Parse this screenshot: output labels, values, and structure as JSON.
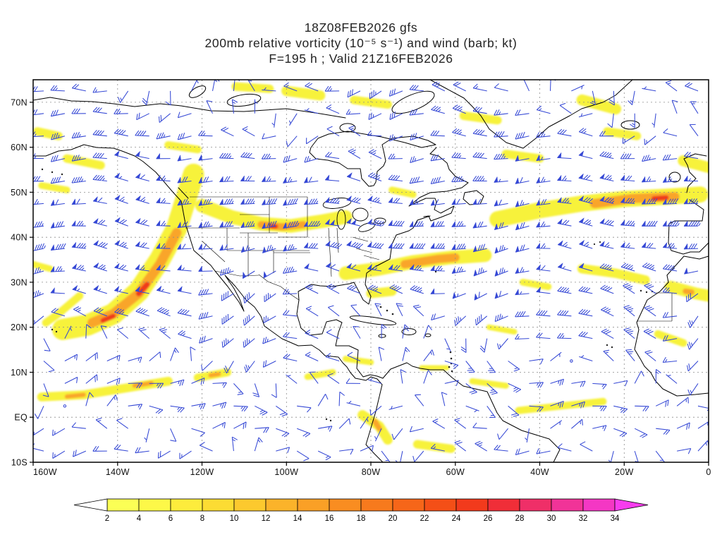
{
  "title": {
    "line1": "18Z08FEB2026 gfs",
    "line2": "200mb relative vorticity (10⁻⁵ s⁻¹) and wind (barb; kt)",
    "line3": "F=195 h ; Valid 21Z16FEB2026"
  },
  "chart_data": {
    "type": "heatmap",
    "model": "gfs",
    "init_time": "18Z08FEB2026",
    "valid_time": "21Z16FEB2026",
    "forecast_hour": 195,
    "field": "200mb relative vorticity (10^-5 s^-1) and wind (barb; kt)",
    "projection": "latlon",
    "lon_min": -160,
    "lon_max": 0,
    "lat_min": -10,
    "lat_max": 75,
    "grid": {
      "style": "dashed",
      "lon_step_deg": 20,
      "lat_step_deg": 10
    },
    "x_ticks": [
      {
        "lon": -160,
        "label": "160W"
      },
      {
        "lon": -140,
        "label": "140W"
      },
      {
        "lon": -120,
        "label": "120W"
      },
      {
        "lon": -100,
        "label": "100W"
      },
      {
        "lon": -80,
        "label": "80W"
      },
      {
        "lon": -60,
        "label": "60W"
      },
      {
        "lon": -40,
        "label": "40W"
      },
      {
        "lon": -20,
        "label": "20W"
      },
      {
        "lon": 0,
        "label": "0"
      }
    ],
    "y_ticks": [
      {
        "lat": 70,
        "label": "70N"
      },
      {
        "lat": 60,
        "label": "60N"
      },
      {
        "lat": 50,
        "label": "50N"
      },
      {
        "lat": 40,
        "label": "40N"
      },
      {
        "lat": 30,
        "label": "30N"
      },
      {
        "lat": 20,
        "label": "20N"
      },
      {
        "lat": 10,
        "label": "10N"
      },
      {
        "lat": 0,
        "label": "EQ"
      },
      {
        "lat": -10,
        "label": "10S"
      }
    ],
    "wind": {
      "color": "#3548d5",
      "grid_deg": 5,
      "jet_center_lat": 42,
      "jet_max_kt": 70,
      "units": "kt"
    },
    "colorbar": {
      "units": "10^-5 s^-1",
      "levels": [
        2,
        4,
        6,
        8,
        10,
        12,
        14,
        16,
        18,
        20,
        22,
        24,
        26,
        28,
        30,
        32,
        34
      ],
      "colors": [
        "#fbff55",
        "#fdf848",
        "#fdec3c",
        "#fcdc33",
        "#fcc92e",
        "#fbb32a",
        "#faa026",
        "#f98d21",
        "#f77a1d",
        "#f66619",
        "#f44f17",
        "#f23a1c",
        "#f02e38",
        "#ef2f68",
        "#f13398",
        "#f437c4"
      ],
      "under": "#ffffff",
      "over": "#f83cee"
    },
    "vorticity_features": [
      {
        "p": [
          [
            -122,
            54
          ],
          [
            -124,
            48
          ],
          [
            -126,
            42
          ],
          [
            -130,
            35
          ],
          [
            -135,
            28
          ],
          [
            -141,
            23
          ],
          [
            -147,
            20.5
          ],
          [
            -153,
            19.5
          ]
        ],
        "w": 5,
        "c": "y"
      },
      {
        "p": [
          [
            -126,
            41
          ],
          [
            -130,
            34
          ],
          [
            -135,
            27.5
          ],
          [
            -141,
            23
          ],
          [
            -146,
            21
          ]
        ],
        "w": 2.3,
        "c": "o"
      },
      {
        "p": [
          [
            -133,
            29.5
          ],
          [
            -135,
            27.5
          ]
        ],
        "w": 1.3,
        "c": "r"
      },
      {
        "p": [
          [
            -141,
            22.5
          ],
          [
            -143.5,
            21.5
          ]
        ],
        "w": 1.1,
        "c": "r"
      },
      {
        "p": [
          [
            -149,
            27
          ],
          [
            -154,
            23
          ],
          [
            -157,
            21
          ]
        ],
        "w": 1.8,
        "c": "y"
      },
      {
        "p": [
          [
            -120,
            47
          ],
          [
            -113,
            44.5
          ],
          [
            -106,
            43
          ],
          [
            -99,
            42.5
          ],
          [
            -92,
            43.5
          ],
          [
            -86,
            44.5
          ]
        ],
        "w": 3.2,
        "c": "y"
      },
      {
        "p": [
          [
            -106,
            42.8
          ],
          [
            -101,
            42.3
          ],
          [
            -96,
            42.8
          ]
        ],
        "w": 1.7,
        "c": "o"
      },
      {
        "p": [
          [
            -103.5,
            42.4
          ],
          [
            -102.5,
            42.4
          ]
        ],
        "w": 1,
        "c": "r"
      },
      {
        "p": [
          [
            -86,
            32
          ],
          [
            -78,
            33
          ],
          [
            -70,
            34.5
          ],
          [
            -61,
            35.5
          ],
          [
            -53,
            36
          ]
        ],
        "w": 3.2,
        "c": "y"
      },
      {
        "p": [
          [
            -72,
            34
          ],
          [
            -64,
            35.2
          ],
          [
            -60,
            35.5
          ]
        ],
        "w": 2,
        "c": "o"
      },
      {
        "p": [
          [
            -80,
            27.5
          ],
          [
            -75,
            28
          ]
        ],
        "w": 2.2,
        "c": "y"
      },
      {
        "p": [
          [
            -50,
            44
          ],
          [
            -40,
            46
          ],
          [
            -30,
            47.5
          ],
          [
            -20,
            48.5
          ],
          [
            -10,
            49
          ],
          [
            -2,
            49.5
          ]
        ],
        "w": 3.8,
        "c": "y"
      },
      {
        "p": [
          [
            -27,
            47.5
          ],
          [
            -18,
            48.6
          ],
          [
            -8,
            49
          ]
        ],
        "w": 2.2,
        "c": "o"
      },
      {
        "p": [
          [
            -13,
            48.6
          ],
          [
            -10,
            48.8
          ]
        ],
        "w": 1.1,
        "c": "r"
      },
      {
        "p": [
          [
            -30,
            33
          ],
          [
            -22,
            32
          ],
          [
            -15,
            30.5
          ]
        ],
        "w": 2.2,
        "c": "y"
      },
      {
        "p": [
          [
            -9,
            29
          ],
          [
            -3,
            27.5
          ],
          [
            0,
            27
          ]
        ],
        "w": 2.8,
        "c": "y"
      },
      {
        "p": [
          [
            -5.5,
            28
          ],
          [
            -4,
            27.8
          ]
        ],
        "w": 1.3,
        "c": "o"
      },
      {
        "p": [
          [
            -12,
            18.5
          ],
          [
            -6,
            16.5
          ]
        ],
        "w": 1.8,
        "c": "y"
      },
      {
        "p": [
          [
            -158,
            4.5
          ],
          [
            -148,
            5
          ],
          [
            -138,
            6.5
          ],
          [
            -128,
            8
          ]
        ],
        "w": 2.1,
        "c": "y"
      },
      {
        "p": [
          [
            -152,
            4.6
          ],
          [
            -148,
            5
          ]
        ],
        "w": 1,
        "c": "o"
      },
      {
        "p": [
          [
            -136,
            7
          ],
          [
            -132,
            7.6
          ]
        ],
        "w": 1,
        "c": "o"
      },
      {
        "p": [
          [
            -121,
            8.8
          ],
          [
            -114,
            10
          ]
        ],
        "w": 1.9,
        "c": "y"
      },
      {
        "p": [
          [
            -118,
            9.3
          ],
          [
            -116,
            9.6
          ]
        ],
        "w": 1,
        "c": "o"
      },
      {
        "p": [
          [
            -82,
            0.5
          ],
          [
            -78,
            -2
          ],
          [
            -76,
            -5
          ]
        ],
        "w": 2.3,
        "c": "y"
      },
      {
        "p": [
          [
            -79,
            -1
          ],
          [
            -78,
            -2.5
          ]
        ],
        "w": 1.3,
        "c": "o"
      },
      {
        "p": [
          [
            -69,
            -6
          ],
          [
            -61,
            -7
          ]
        ],
        "w": 2,
        "c": "y"
      },
      {
        "p": [
          [
            -45,
            1.5
          ],
          [
            -35,
            2.5
          ],
          [
            -25,
            3.5
          ]
        ],
        "w": 1.7,
        "c": "y"
      },
      {
        "p": [
          [
            -95,
            9
          ],
          [
            -89,
            10
          ]
        ],
        "w": 1.5,
        "c": "y"
      },
      {
        "p": [
          [
            -152,
            57.5
          ],
          [
            -144,
            56
          ]
        ],
        "w": 2,
        "c": "y"
      },
      {
        "p": [
          [
            -158,
            51.5
          ],
          [
            -152,
            50.5
          ]
        ],
        "w": 1.6,
        "c": "y"
      },
      {
        "p": [
          [
            -159,
            63.5
          ],
          [
            -154,
            62.5
          ]
        ],
        "w": 2,
        "c": "y"
      },
      {
        "p": [
          [
            -160,
            34
          ],
          [
            -156,
            33
          ]
        ],
        "w": 1.5,
        "c": "y"
      },
      {
        "p": [
          [
            -58,
            67
          ],
          [
            -50,
            66
          ]
        ],
        "w": 2,
        "c": "y"
      },
      {
        "p": [
          [
            -48,
            58.5
          ],
          [
            -40,
            57.5
          ]
        ],
        "w": 2,
        "c": "y"
      },
      {
        "p": [
          [
            -24,
            63.5
          ],
          [
            -17,
            62.5
          ]
        ],
        "w": 2,
        "c": "y"
      },
      {
        "p": [
          [
            -30,
            70.5
          ],
          [
            -22,
            68.5
          ]
        ],
        "w": 2.6,
        "c": "y"
      },
      {
        "p": [
          [
            -128,
            60.5
          ],
          [
            -121,
            59.5
          ]
        ],
        "w": 1.8,
        "c": "y"
      },
      {
        "p": [
          [
            -86,
            13
          ],
          [
            -80,
            12.2
          ]
        ],
        "w": 1.4,
        "c": "y"
      },
      {
        "p": [
          [
            -68,
            11
          ],
          [
            -62,
            11
          ]
        ],
        "w": 1.2,
        "c": "y"
      },
      {
        "p": [
          [
            -56,
            8
          ],
          [
            -48,
            7
          ]
        ],
        "w": 1.4,
        "c": "y"
      },
      {
        "p": [
          [
            -100,
            72.5
          ],
          [
            -92,
            71.5
          ]
        ],
        "w": 2.4,
        "c": "y"
      },
      {
        "p": [
          [
            -112,
            73.5
          ],
          [
            -104,
            73
          ]
        ],
        "w": 2,
        "c": "y"
      },
      {
        "p": [
          [
            -84,
            70.5
          ],
          [
            -76,
            69.5
          ]
        ],
        "w": 2,
        "c": "y"
      },
      {
        "p": [
          [
            -6,
            57
          ],
          [
            0,
            55.5
          ]
        ],
        "w": 2.6,
        "c": "y"
      },
      {
        "p": [
          [
            -75,
            50.5
          ],
          [
            -70,
            49.5
          ]
        ],
        "w": 1.6,
        "c": "y"
      },
      {
        "p": [
          [
            -44,
            30
          ],
          [
            -38,
            29
          ]
        ],
        "w": 1.6,
        "c": "y"
      },
      {
        "p": [
          [
            -52,
            20
          ],
          [
            -46,
            19
          ]
        ],
        "w": 1.3,
        "c": "y"
      }
    ]
  }
}
